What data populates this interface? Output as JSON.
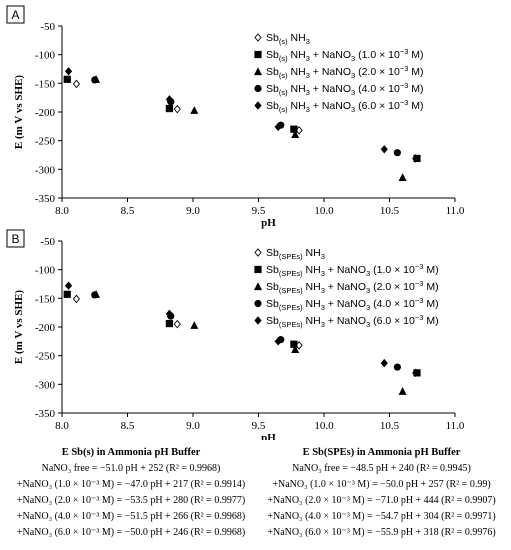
{
  "charts": [
    {
      "panel_label": "A",
      "xlabel": "pH",
      "ylabel": "E (m V vs SHE)",
      "chart_data": {
        "type": "scatter",
        "xlim": [
          8.0,
          11.0
        ],
        "ylim": [
          -350,
          -50
        ],
        "xticks": [
          "8.0",
          "8.5",
          "9.0",
          "9.5",
          "10.0",
          "10.5",
          "11.0"
        ],
        "yticks": [
          "-50",
          "-100",
          "-150",
          "-200",
          "-250",
          "-300",
          "-350"
        ],
        "grid": false,
        "legend_position": "top-right",
        "series": [
          {
            "marker": "diamond-open",
            "legend": {
              "pre": "Sb",
              "sub": "(s)",
              "post": " NH",
              "sub2": "3",
              "tail": ""
            },
            "points": [
              [
                8.11,
                -151
              ],
              [
                8.88,
                -195
              ],
              [
                9.81,
                -232
              ],
              [
                10.7,
                -281
              ]
            ]
          },
          {
            "marker": "square",
            "legend": {
              "pre": "Sb",
              "sub": "(s)",
              "post": " NH",
              "sub2": "3",
              "tail": " + NaNO",
              "sub3": "3",
              "paren": " (1.0 × 10",
              "sup": "−3",
              "end": " M)"
            },
            "points": [
              [
                8.04,
                -143
              ],
              [
                8.82,
                -194
              ],
              [
                9.77,
                -230
              ],
              [
                10.71,
                -281
              ]
            ]
          },
          {
            "marker": "triangle",
            "legend": {
              "pre": "Sb",
              "sub": "(s)",
              "post": " NH",
              "sub2": "3",
              "tail": " + NaNO",
              "sub3": "3",
              "paren": " (2.0 × 10",
              "sup": "−3",
              "end": " M)"
            },
            "points": [
              [
                8.26,
                -143
              ],
              [
                9.01,
                -197
              ],
              [
                9.78,
                -239
              ],
              [
                10.6,
                -314
              ]
            ]
          },
          {
            "marker": "circle",
            "legend": {
              "pre": "Sb",
              "sub": "(s)",
              "post": " NH",
              "sub2": "3",
              "tail": " + NaNO",
              "sub3": "3",
              "paren": " (4.0 × 10",
              "sup": "−3",
              "end": " M)"
            },
            "points": [
              [
                8.25,
                -144
              ],
              [
                8.83,
                -182
              ],
              [
                9.67,
                -223
              ],
              [
                10.56,
                -271
              ]
            ]
          },
          {
            "marker": "diamond",
            "legend": {
              "pre": "Sb",
              "sub": "(s)",
              "post": " NH",
              "sub2": "3",
              "tail": " + NaNO",
              "sub3": "3",
              "paren": " (6.0 × 10",
              "sup": "−3",
              "end": " M)"
            },
            "points": [
              [
                8.05,
                -129
              ],
              [
                8.82,
                -178
              ],
              [
                9.65,
                -226
              ],
              [
                10.46,
                -265
              ]
            ]
          }
        ]
      }
    },
    {
      "panel_label": "B",
      "xlabel": "pH",
      "ylabel": "E (m V vs SHE)",
      "chart_data": {
        "type": "scatter",
        "xlim": [
          8.0,
          11.0
        ],
        "ylim": [
          -350,
          -50
        ],
        "xticks": [
          "8.0",
          "8.5",
          "9.0",
          "9.5",
          "10.0",
          "10.5",
          "11.0"
        ],
        "yticks": [
          "-50",
          "-100",
          "-150",
          "-200",
          "-250",
          "-300",
          "-350"
        ],
        "grid": false,
        "legend_position": "top-right",
        "series": [
          {
            "marker": "diamond-open",
            "legend": {
              "pre": "Sb",
              "sub": "(SPEs)",
              "post": " NH",
              "sub2": "3",
              "tail": ""
            },
            "points": [
              [
                8.11,
                -151
              ],
              [
                8.88,
                -195
              ],
              [
                9.81,
                -232
              ],
              [
                10.7,
                -280
              ]
            ]
          },
          {
            "marker": "square",
            "legend": {
              "pre": "Sb",
              "sub": "(SPEs)",
              "post": " NH",
              "sub2": "3",
              "tail": " + NaNO",
              "sub3": "3",
              "paren": " (1.0 × 10",
              "sup": "−3",
              "end": " M)"
            },
            "points": [
              [
                8.04,
                -143
              ],
              [
                8.82,
                -194
              ],
              [
                9.77,
                -230
              ],
              [
                10.71,
                -280
              ]
            ]
          },
          {
            "marker": "triangle",
            "legend": {
              "pre": "Sb",
              "sub": "(SPEs)",
              "post": " NH",
              "sub2": "3",
              "tail": " + NaNO",
              "sub3": "3",
              "paren": " (2.0 × 10",
              "sup": "−3",
              "end": " M)"
            },
            "points": [
              [
                8.26,
                -143
              ],
              [
                9.01,
                -197
              ],
              [
                9.78,
                -239
              ],
              [
                10.6,
                -312
              ]
            ]
          },
          {
            "marker": "circle",
            "legend": {
              "pre": "Sb",
              "sub": "(SPEs)",
              "post": " NH",
              "sub2": "3",
              "tail": " + NaNO",
              "sub3": "3",
              "paren": " (4.0 × 10",
              "sup": "−3",
              "end": " M)"
            },
            "points": [
              [
                8.25,
                -144
              ],
              [
                8.83,
                -181
              ],
              [
                9.67,
                -222
              ],
              [
                10.56,
                -270
              ]
            ]
          },
          {
            "marker": "diamond",
            "legend": {
              "pre": "Sb",
              "sub": "(SPEs)",
              "post": " NH",
              "sub2": "3",
              "tail": " + NaNO",
              "sub3": "3",
              "paren": " (6.0 × 10",
              "sup": "−3",
              "end": " M)"
            },
            "points": [
              [
                8.05,
                -128
              ],
              [
                8.82,
                -177
              ],
              [
                9.65,
                -225
              ],
              [
                10.46,
                -263
              ]
            ]
          }
        ]
      }
    }
  ],
  "equations": {
    "left": {
      "title": "E Sb(s) in Ammonia pH Buffer",
      "lines": [
        "NaNO₃ free = −51.0 pH + 252 (R² = 0.9968)",
        "+NaNO₃ (1.0 × 10⁻³ M) = −47.0 pH + 217 (R² = 0.9914)",
        "+NaNO₃ (2.0 × 10⁻³ M) = −53.5 pH + 280 (R² = 0.9977)",
        "+NaNO₃ (4.0 × 10⁻³ M) = −51.5 pH + 266 (R² = 0.9968)",
        "+NaNO₃ (6.0 × 10⁻³ M) = −50.0 pH + 246 (R² = 0.9968)"
      ]
    },
    "right": {
      "title": "E Sb(SPEs) in Ammonia pH Buffer",
      "lines": [
        "NaNO₃ free = −48.5 pH + 240 (R² = 0.9945)",
        "+NaNO₃ (1.0 × 10⁻³ M) = −50.0 pH + 257 (R² = 0.99)",
        "+NaNO₃ (2.0 × 10⁻³ M) = −71.0 pH + 444 (R² = 0.9907)",
        "+NaNO₃ (4.0 × 10⁻³ M) = −54.7 pH + 304 (R² = 0.9971)",
        "+NaNO₃ (6.0 × 10⁻³ M) = −55.9 pH + 318 (R² = 0.9976)"
      ]
    }
  }
}
